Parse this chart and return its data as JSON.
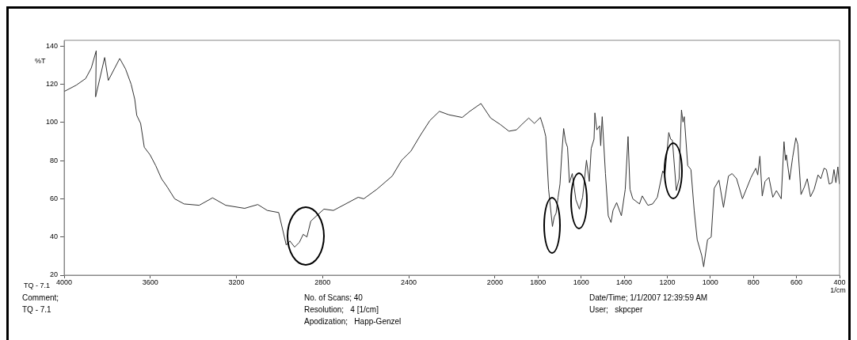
{
  "chart_data": {
    "type": "line",
    "xlabel": "1/cm",
    "ylabel": "%T",
    "x": [
      4000,
      3944,
      3900,
      3874,
      3851,
      3854,
      3812,
      3795,
      3742,
      3715,
      3689,
      3672,
      3663,
      3645,
      3628,
      3601,
      3575,
      3548,
      3522,
      3487,
      3443,
      3373,
      3311,
      3250,
      3162,
      3101,
      3057,
      3004,
      2969,
      2952,
      2930,
      2908,
      2890,
      2873,
      2855,
      2794,
      2750,
      2635,
      2609,
      2548,
      2477,
      2433,
      2390,
      2346,
      2302,
      2258,
      2214,
      2152,
      2117,
      2065,
      2020,
      1975,
      1935,
      1900,
      1870,
      1843,
      1817,
      1789,
      1773,
      1764,
      1751,
      1733,
      1725,
      1716,
      1707,
      1698,
      1690,
      1681,
      1672,
      1663,
      1654,
      1641,
      1624,
      1608,
      1593,
      1575,
      1562,
      1553,
      1540,
      1536,
      1527,
      1514,
      1509,
      1502,
      1487,
      1474,
      1461,
      1452,
      1435,
      1413,
      1395,
      1382,
      1373,
      1360,
      1329,
      1316,
      1290,
      1268,
      1246,
      1221,
      1211,
      1193,
      1184,
      1176,
      1158,
      1145,
      1134,
      1127,
      1121,
      1105,
      1090,
      1075,
      1061,
      1040,
      1031,
      1013,
      996,
      982,
      960,
      939,
      916,
      899,
      878,
      851,
      811,
      789,
      780,
      770,
      759,
      746,
      728,
      710,
      693,
      671,
      658,
      651,
      647,
      632,
      618,
      603,
      594,
      579,
      563,
      550,
      535,
      518,
      500,
      487,
      472,
      461,
      448,
      435,
      426,
      417,
      408,
      401
    ],
    "series": [
      {
        "color": "#333333",
        "values": [
          116.2,
          119.5,
          123,
          128.5,
          137.6,
          113.4,
          134,
          122,
          133.5,
          128,
          120,
          112,
          103.7,
          99.5,
          87,
          83,
          77.4,
          70.5,
          66.3,
          60,
          57.3,
          56.6,
          60.5,
          56.6,
          55,
          57,
          53.9,
          52.8,
          35.8,
          37.9,
          34.7,
          37.2,
          41.4,
          40,
          48.3,
          54.6,
          53.9,
          60.8,
          60,
          65,
          71.9,
          80.2,
          85,
          93.3,
          101,
          105.8,
          104,
          102.6,
          105.8,
          109.9,
          102.3,
          98.9,
          95.4,
          96.1,
          99.5,
          102.3,
          99.5,
          102.6,
          96.8,
          92.6,
          65,
          45.5,
          50.4,
          52.5,
          60.8,
          67.7,
          83,
          96.8,
          89.9,
          87,
          68.4,
          73.2,
          59.4,
          54.6,
          60.8,
          80.2,
          69.1,
          86.4,
          91.2,
          105,
          96.1,
          98.2,
          87.8,
          103,
          73.2,
          51.1,
          47.6,
          53.9,
          58,
          51.1,
          65,
          92.6,
          65,
          60,
          57.3,
          61.5,
          56.6,
          57.3,
          60.8,
          74.6,
          72.5,
          94.7,
          91.2,
          90.6,
          64.3,
          70.5,
          106.5,
          100.2,
          103,
          77.4,
          75.3,
          53.9,
          38.6,
          30.3,
          24.4,
          38.6,
          40,
          65.5,
          69.8,
          55.5,
          71.9,
          73.2,
          70.5,
          60,
          71.2,
          76,
          72.5,
          82.3,
          61.5,
          69.1,
          71.2,
          60.8,
          64.3,
          60,
          89.9,
          80.2,
          83,
          70,
          81.6,
          91.9,
          88.5,
          62.2,
          66.3,
          70.5,
          61.1,
          65,
          72.5,
          70.5,
          76,
          75.3,
          67.7,
          68.4,
          75.3,
          68.4,
          76.7,
          67.7
        ]
      }
    ],
    "xlim": [
      4000,
      400
    ],
    "xticks": [
      4000,
      3600,
      3200,
      2800,
      2400,
      2000,
      1800,
      1600,
      1400,
      1200,
      1000,
      800,
      600,
      400
    ],
    "ylim": [
      20,
      143
    ],
    "yticks": [
      20,
      40,
      60,
      80,
      100,
      120,
      140
    ],
    "grid": false,
    "legend": false,
    "marker": "none",
    "line_style": "solid",
    "annotations": [
      "TQ - 7.1",
      "Comment;",
      "TQ - 7.1",
      "No. of Scans; 40",
      "Resolution;   4 [1/cm]",
      "Apodization;   Happ-Genzel",
      "Date/Time; 1/1/2007 12:39:59 AM",
      "User;   skpcper"
    ]
  }
}
